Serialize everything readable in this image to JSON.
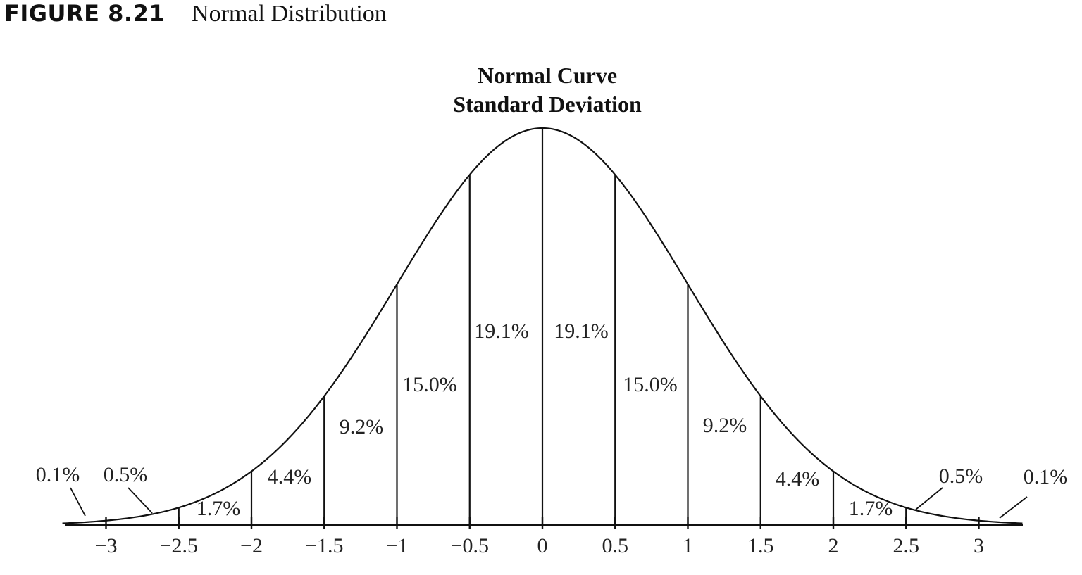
{
  "figure": {
    "label": "FIGURE 8.21",
    "caption": "Normal Distribution"
  },
  "chart_data": {
    "type": "area",
    "title": "Normal Curve",
    "subtitle": "Standard Deviation",
    "xlabel": "",
    "ylabel": "",
    "xlim": [
      -3.3,
      3.3
    ],
    "grid": false,
    "ticks": [
      "−3",
      "−2.5",
      "−2",
      "−1.5",
      "−1",
      "−0.5",
      "0",
      "0.5",
      "1",
      "1.5",
      "2",
      "2.5",
      "3"
    ],
    "tick_values": [
      -3,
      -2.5,
      -2,
      -1.5,
      -1,
      -0.5,
      0,
      0.5,
      1,
      1.5,
      2,
      2.5,
      3
    ],
    "segments": [
      {
        "from": -3.3,
        "to": -3,
        "label": "0.1%"
      },
      {
        "from": -3,
        "to": -2.5,
        "label": "0.5%"
      },
      {
        "from": -2.5,
        "to": -2,
        "label": "1.7%"
      },
      {
        "from": -2,
        "to": -1.5,
        "label": "4.4%"
      },
      {
        "from": -1.5,
        "to": -1,
        "label": "9.2%"
      },
      {
        "from": -1,
        "to": -0.5,
        "label": "15.0%"
      },
      {
        "from": -0.5,
        "to": 0,
        "label": "19.1%"
      },
      {
        "from": 0,
        "to": 0.5,
        "label": "19.1%"
      },
      {
        "from": 0.5,
        "to": 1,
        "label": "15.0%"
      },
      {
        "from": 1,
        "to": 1.5,
        "label": "9.2%"
      },
      {
        "from": 1.5,
        "to": 2,
        "label": "4.4%"
      },
      {
        "from": 2,
        "to": 2.5,
        "label": "1.7%"
      },
      {
        "from": 2.5,
        "to": 3,
        "label": "0.5%"
      },
      {
        "from": 3,
        "to": 3.3,
        "label": "0.1%"
      }
    ],
    "colors": {
      "line": "#111111",
      "text": "#222222"
    }
  }
}
